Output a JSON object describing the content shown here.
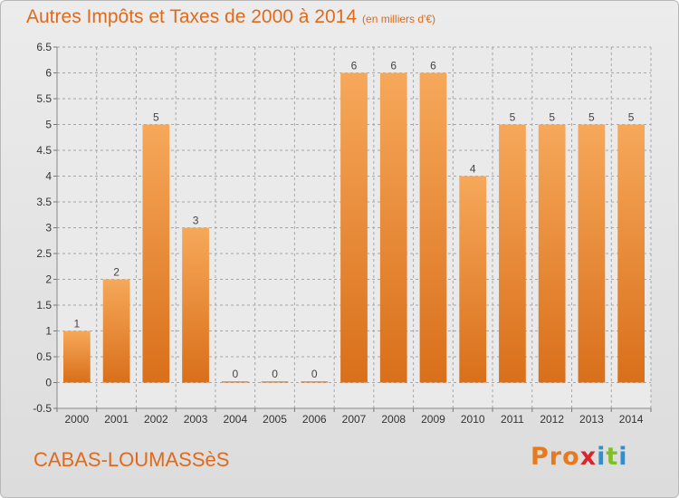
{
  "header": {
    "title": "Autres Impôts et Taxes de 2000 à 2014",
    "unit": "(en milliers d'€)"
  },
  "footer": {
    "place": "CABAS-LOUMASSèS",
    "logo": "Proxiti"
  },
  "colors": {
    "title": "#e06a1b",
    "bar_top": "#f6a85a",
    "bar_bottom": "#d96f1a",
    "grid": "#a7a7a7",
    "logo_letters": [
      "#e8791c",
      "#e8791c",
      "#e8791c",
      "#d8262a",
      "#2f8fcf",
      "#7fbf2a",
      "#2f8fcf"
    ]
  },
  "chart_data": {
    "type": "bar",
    "title": "Autres Impôts et Taxes de 2000 à 2014",
    "subtitle": "(en milliers d'€)",
    "categories": [
      "2000",
      "2001",
      "2002",
      "2003",
      "2004",
      "2005",
      "2006",
      "2007",
      "2008",
      "2009",
      "2010",
      "2011",
      "2012",
      "2013",
      "2014"
    ],
    "values": [
      1,
      2,
      5,
      3,
      0,
      0,
      0,
      6,
      6,
      6,
      4,
      5,
      5,
      5,
      5
    ],
    "ylim": [
      -0.5,
      6.5
    ],
    "yticks": [
      "-0.5",
      "0",
      "0.5",
      "1",
      "1.5",
      "2",
      "2.5",
      "3",
      "3.5",
      "4",
      "4.5",
      "5",
      "5.5",
      "6",
      "6.5"
    ],
    "grid": true,
    "xlabel": "",
    "ylabel": ""
  }
}
